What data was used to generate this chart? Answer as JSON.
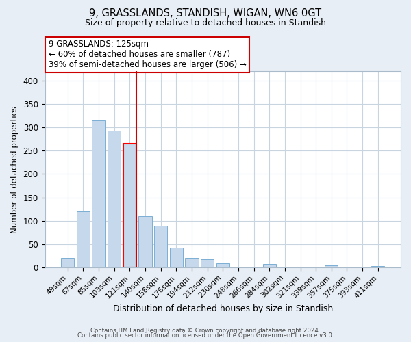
{
  "title1": "9, GRASSLANDS, STANDISH, WIGAN, WN6 0GT",
  "title2": "Size of property relative to detached houses in Standish",
  "xlabel": "Distribution of detached houses by size in Standish",
  "ylabel": "Number of detached properties",
  "categories": [
    "49sqm",
    "67sqm",
    "85sqm",
    "103sqm",
    "121sqm",
    "140sqm",
    "158sqm",
    "176sqm",
    "194sqm",
    "212sqm",
    "230sqm",
    "248sqm",
    "266sqm",
    "284sqm",
    "302sqm",
    "321sqm",
    "339sqm",
    "357sqm",
    "375sqm",
    "393sqm",
    "411sqm"
  ],
  "values": [
    20,
    120,
    315,
    293,
    265,
    110,
    90,
    43,
    21,
    17,
    9,
    0,
    0,
    7,
    0,
    0,
    0,
    5,
    0,
    0,
    3
  ],
  "bar_color": "#c6d9ec",
  "bar_edge_color": "#7bafd4",
  "highlight_index": 4,
  "highlight_edge_color": "red",
  "vline_color": "#cc0000",
  "annotation_title": "9 GRASSLANDS: 125sqm",
  "annotation_line1": "← 60% of detached houses are smaller (787)",
  "annotation_line2": "39% of semi-detached houses are larger (506) →",
  "annotation_box_edge": "#cc0000",
  "ylim": [
    0,
    420
  ],
  "yticks": [
    0,
    50,
    100,
    150,
    200,
    250,
    300,
    350,
    400
  ],
  "footer1": "Contains HM Land Registry data © Crown copyright and database right 2024.",
  "footer2": "Contains public sector information licensed under the Open Government Licence v3.0.",
  "bg_color": "#e8eef5",
  "plot_bg_color": "#ffffff",
  "grid_color": "#c8d4e0"
}
